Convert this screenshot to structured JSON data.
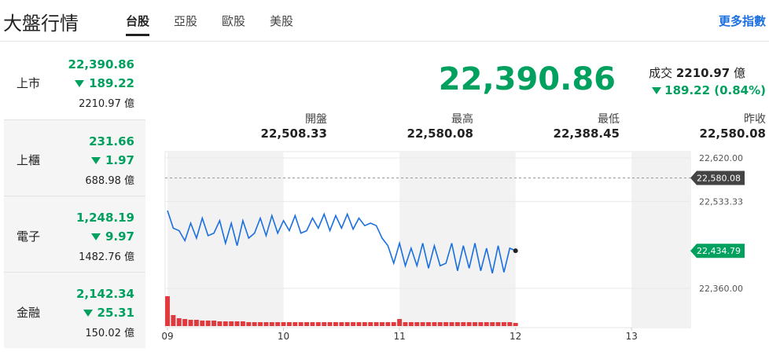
{
  "header": {
    "title": "大盤行情",
    "tabs": [
      "台股",
      "亞股",
      "歐股",
      "美股"
    ],
    "more": "更多指數"
  },
  "markets": [
    {
      "name": "上市",
      "price": "22,390.86",
      "change": "189.22",
      "volume": "2210.97 億"
    },
    {
      "name": "上櫃",
      "price": "231.66",
      "change": "1.97",
      "volume": "688.98 億"
    },
    {
      "name": "電子",
      "price": "1,248.19",
      "change": "9.97",
      "volume": "1482.76 億"
    },
    {
      "name": "金融",
      "price": "2,142.34",
      "change": "25.31",
      "volume": "150.02 億"
    }
  ],
  "summary": {
    "price": "22,390.86",
    "volume_label": "成交",
    "volume": "2210.97",
    "volume_unit": "億",
    "change": "189.22 (0.84%)",
    "stats": [
      {
        "label": "開盤",
        "value": "22,508.33"
      },
      {
        "label": "最高",
        "value": "22,580.08"
      },
      {
        "label": "最低",
        "value": "22,388.45"
      },
      {
        "label": "昨收",
        "value": "22,580.08"
      }
    ]
  },
  "chart_data": {
    "type": "line",
    "x": [
      9,
      9.05,
      9.1,
      9.15,
      9.2,
      9.25,
      9.3,
      9.35,
      9.4,
      9.45,
      9.5,
      9.55,
      9.6,
      9.65,
      9.7,
      9.75,
      9.8,
      9.85,
      9.9,
      9.95,
      10,
      10.05,
      10.1,
      10.15,
      10.2,
      10.25,
      10.3,
      10.35,
      10.4,
      10.45,
      10.5,
      10.55,
      10.6,
      10.65,
      10.7,
      10.75,
      10.8,
      10.85,
      10.9,
      10.95,
      11,
      11.05,
      11.1,
      11.15,
      11.2,
      11.25,
      11.3,
      11.35,
      11.4,
      11.45,
      11.5,
      11.55,
      11.6,
      11.65,
      11.7,
      11.75,
      11.8,
      11.85,
      11.9,
      11.95,
      12
    ],
    "series": [
      {
        "color": "#1a6fe0",
        "values": [
          22515,
          22480,
          22475,
          22455,
          22490,
          22460,
          22500,
          22465,
          22470,
          22495,
          22450,
          22490,
          22445,
          22495,
          22460,
          22470,
          22500,
          22465,
          22505,
          22470,
          22495,
          22475,
          22505,
          22470,
          22475,
          22500,
          22480,
          22508,
          22475,
          22505,
          22480,
          22508,
          22478,
          22500,
          22485,
          22490,
          22485,
          22460,
          22445,
          22410,
          22450,
          22405,
          22440,
          22405,
          22450,
          22400,
          22445,
          22405,
          22410,
          22450,
          22395,
          22445,
          22400,
          22450,
          22395,
          22440,
          22390,
          22445,
          22392,
          22440,
          22435
        ]
      }
    ],
    "volume": {
      "color": "#e0393e",
      "values": [
        38,
        14,
        10,
        9,
        8,
        8,
        7,
        7,
        7,
        6,
        6,
        6,
        6,
        6,
        5,
        5,
        5,
        5,
        5,
        5,
        5,
        5,
        5,
        5,
        5,
        5,
        5,
        5,
        5,
        5,
        5,
        5,
        5,
        5,
        5,
        5,
        5,
        5,
        5,
        5,
        9,
        5,
        5,
        5,
        5,
        5,
        5,
        5,
        5,
        5,
        5,
        5,
        5,
        5,
        5,
        5,
        5,
        5,
        5,
        5,
        4
      ]
    },
    "xlim": [
      9,
      13.5
    ],
    "xticks": [
      {
        "value": 9,
        "label": "09"
      },
      10,
      11,
      12,
      13
    ],
    "ylim": [
      22360,
      22620
    ],
    "yticks": [
      {
        "value": 22620,
        "label": "22,620.00"
      },
      {
        "value": 22533.33,
        "label": "22,533.33"
      },
      {
        "value": 22360,
        "label": "22,360.00"
      }
    ],
    "reference": {
      "value": 22580.08,
      "label": "22,580.08"
    },
    "last": {
      "value": 22434.79,
      "label": "22,434.79"
    },
    "grid": true
  }
}
